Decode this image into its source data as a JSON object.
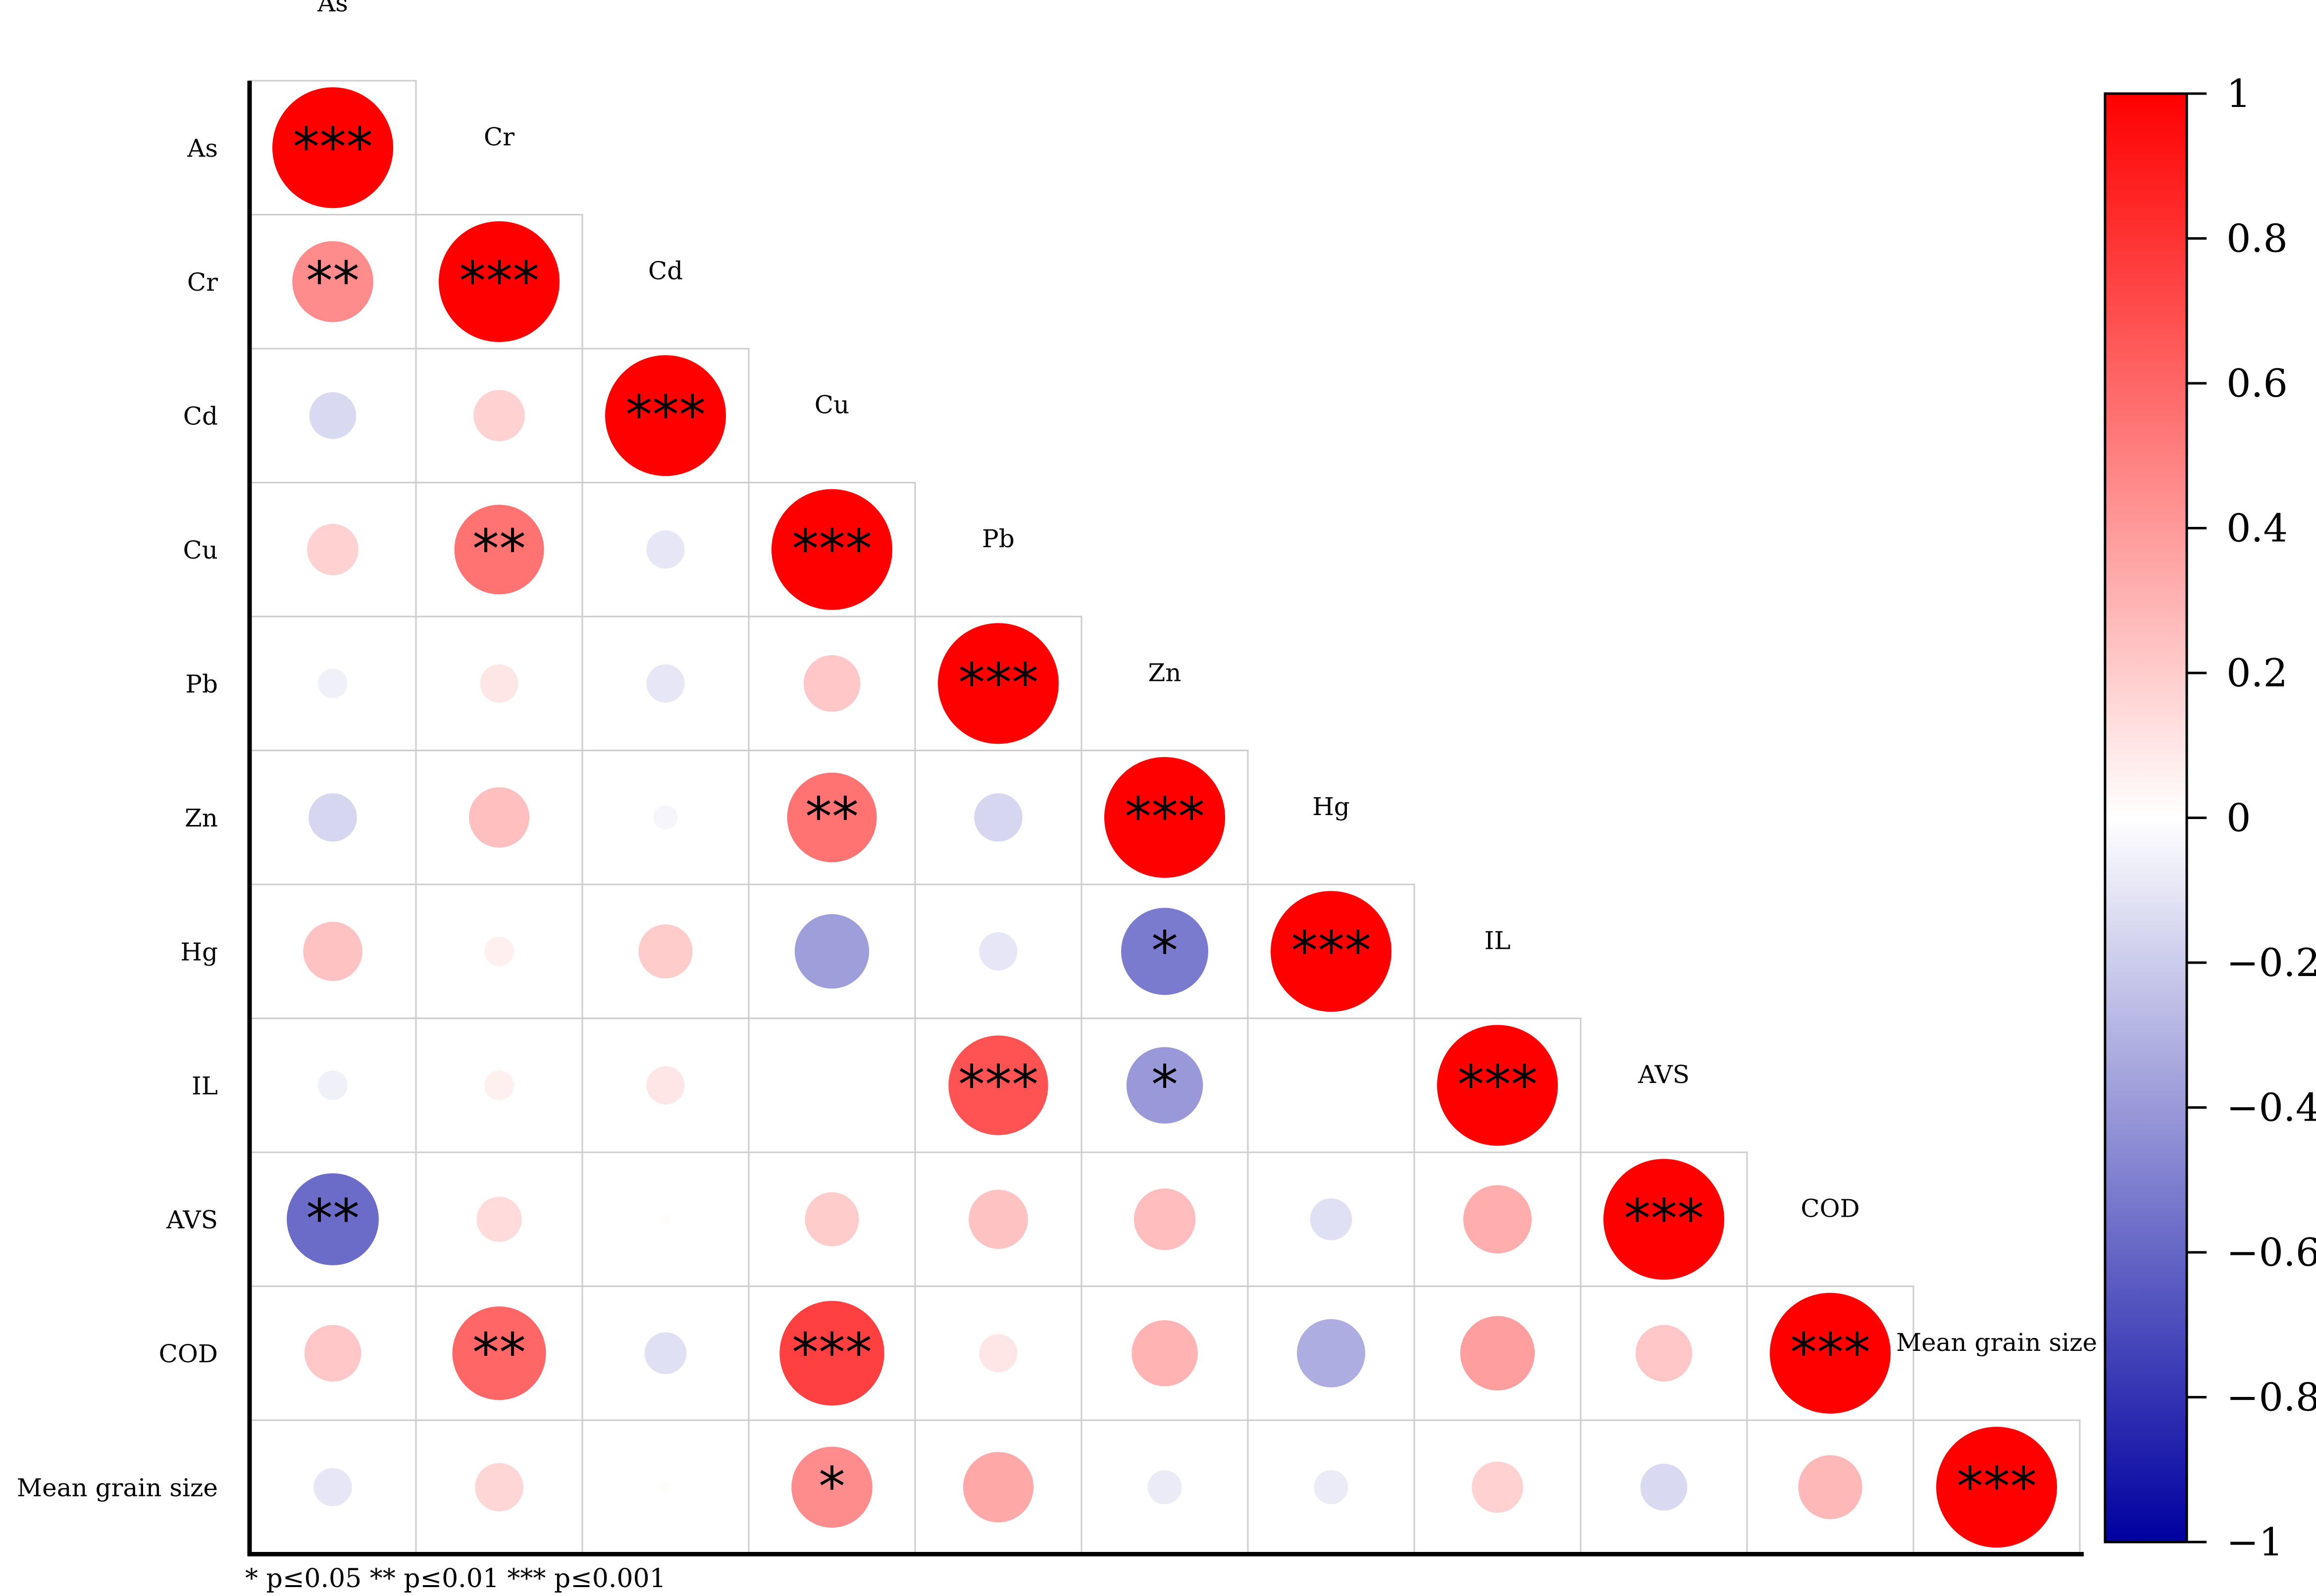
{
  "chart_data": {
    "type": "heatmap",
    "variables": [
      "As",
      "Cr",
      "Cd",
      "Cu",
      "Pb",
      "Zn",
      "Hg",
      "IL",
      "AVS",
      "COD",
      "Mean grain size"
    ],
    "matrix_lower": [
      [
        1
      ],
      [
        0.45,
        1
      ],
      [
        -0.15,
        0.18,
        1
      ],
      [
        0.18,
        0.55,
        -0.1,
        1
      ],
      [
        -0.06,
        0.1,
        -0.1,
        0.22,
        1
      ],
      [
        -0.16,
        0.25,
        -0.04,
        0.55,
        -0.16,
        1
      ],
      [
        0.24,
        0.06,
        0.2,
        -0.38,
        -0.1,
        -0.52,
        1
      ],
      [
        -0.06,
        0.06,
        0.1,
        0,
        0.68,
        -0.4,
        0,
        1
      ],
      [
        -0.58,
        0.14,
        0.01,
        0.2,
        0.24,
        0.26,
        -0.12,
        0.32,
        1
      ],
      [
        0.22,
        0.6,
        -0.12,
        0.75,
        0.1,
        0.3,
        -0.32,
        0.38,
        0.22,
        1
      ],
      [
        -0.1,
        0.16,
        0.01,
        0.45,
        0.34,
        -0.08,
        -0.08,
        0.18,
        -0.15,
        0.28,
        1
      ]
    ],
    "significance_lower": [
      [
        "***"
      ],
      [
        "**",
        "***"
      ],
      [
        "",
        "",
        "***"
      ],
      [
        "",
        "**",
        "",
        "***"
      ],
      [
        "",
        "",
        "",
        "",
        "***"
      ],
      [
        "",
        "",
        "",
        "**",
        "",
        "***"
      ],
      [
        "",
        "",
        "",
        "",
        "",
        "*",
        "***"
      ],
      [
        "",
        "",
        "",
        "",
        "***",
        "*",
        "",
        "***"
      ],
      [
        "**",
        "",
        "",
        "",
        "",
        "",
        "",
        "",
        "***"
      ],
      [
        "",
        "**",
        "",
        "***",
        "",
        "",
        "",
        "",
        "",
        "***"
      ],
      [
        "",
        "",
        "",
        "*",
        "",
        "",
        "",
        "",
        "",
        "",
        "***"
      ]
    ],
    "colorbar": {
      "range": [
        -1,
        1
      ],
      "ticks": [
        "1",
        "0.8",
        "0.6",
        "0.4",
        "0.2",
        "0",
        "−0.2",
        "−0.4",
        "−0.6",
        "−0.8",
        "−1"
      ],
      "colors": {
        "positive": "#ff0000",
        "zero": "#ffffff",
        "negative": "#0000a0"
      }
    },
    "legend_text": "* p≤0.05  ** p≤0.01  *** p≤0.001",
    "grid_color": "#cccccc",
    "axis_color": "#000000"
  }
}
